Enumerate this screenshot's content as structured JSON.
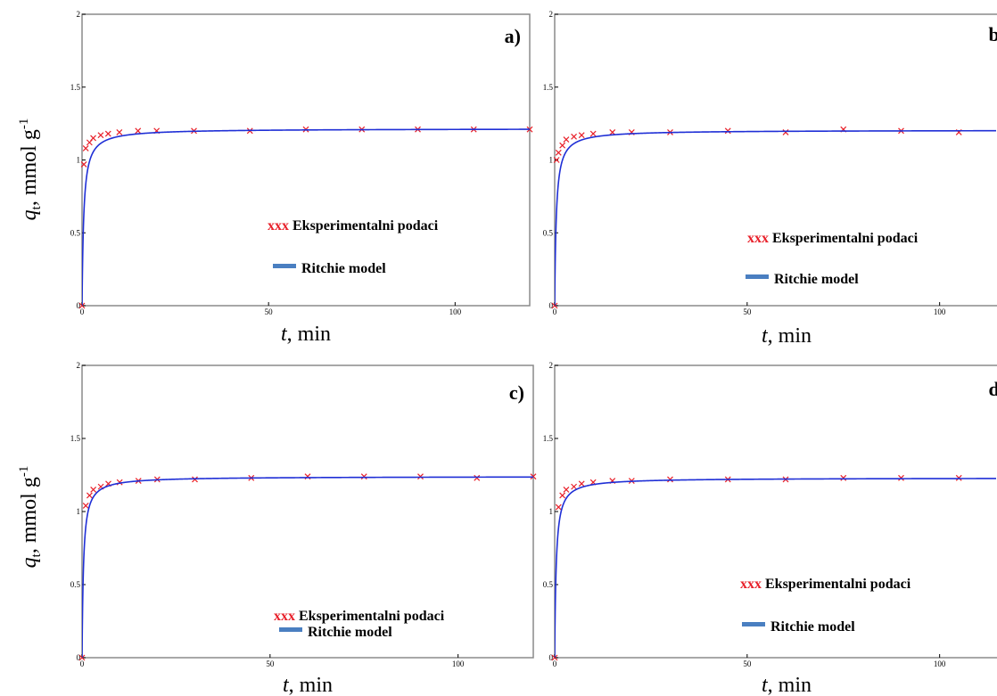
{
  "figure": {
    "ylabel_var": "q",
    "ylabel_sub": "t",
    "ylabel_unit": ", mmol g",
    "ylabel_exp": "-1",
    "xlabel_var": "t",
    "xlabel_unit": ", min"
  },
  "colors": {
    "model": "#1f2fd6",
    "experimental": "#e8202a",
    "legend_model_swatch": "#4a7fc1",
    "legend_marker_text": "#e8202a",
    "frame": "#8a8a8a"
  },
  "chart_data": [
    {
      "id": "a",
      "label": "a)",
      "type": "scatter",
      "xlim": [
        0,
        120
      ],
      "ylim": [
        0,
        2
      ],
      "x_ticks": [
        0,
        50,
        100
      ],
      "y_ticks": [
        0,
        0.5,
        1,
        1.5,
        2
      ],
      "y_tick_labels": [
        "0",
        "0.5",
        "1",
        "1.5",
        "2"
      ],
      "legend": {
        "marker_text": "xxx",
        "experimental": "Eksperimentalni podaci",
        "model": "Ritchie model"
      },
      "series": [
        {
          "name": "Eksperimentalni podaci",
          "kind": "points",
          "x": [
            0,
            0.5,
            1,
            2,
            3,
            5,
            7,
            10,
            15,
            20,
            30,
            45,
            60,
            75,
            90,
            105,
            120
          ],
          "y": [
            0.0,
            0.97,
            1.08,
            1.12,
            1.15,
            1.17,
            1.18,
            1.19,
            1.2,
            1.2,
            1.2,
            1.2,
            1.21,
            1.21,
            1.21,
            1.21,
            1.21
          ]
        },
        {
          "name": "Ritchie model",
          "kind": "line",
          "qe": 1.215,
          "k": 2.2
        }
      ]
    },
    {
      "id": "b",
      "label": "b)",
      "type": "scatter",
      "xlim": [
        0,
        120
      ],
      "ylim": [
        0,
        2
      ],
      "x_ticks": [
        0,
        50,
        100
      ],
      "y_ticks": [
        0,
        0.5,
        1,
        1.5,
        2
      ],
      "y_tick_labels": [
        "0",
        "0.5",
        "1",
        "1.5",
        "2"
      ],
      "legend": {
        "marker_text": "xxx",
        "experimental": "Eksperimentalni podaci",
        "model": "Ritchie model"
      },
      "series": [
        {
          "name": "Eksperimentalni podaci",
          "kind": "points",
          "x": [
            0,
            0.5,
            1,
            2,
            3,
            5,
            7,
            10,
            15,
            20,
            30,
            45,
            60,
            75,
            90,
            105
          ],
          "y": [
            0.0,
            1.0,
            1.05,
            1.1,
            1.14,
            1.16,
            1.17,
            1.18,
            1.19,
            1.19,
            1.19,
            1.2,
            1.19,
            1.21,
            1.2,
            1.19
          ]
        },
        {
          "name": "Ritchie model",
          "kind": "line",
          "qe": 1.205,
          "k": 2.4
        }
      ]
    },
    {
      "id": "c",
      "label": "c)",
      "type": "scatter",
      "xlim": [
        0,
        120
      ],
      "ylim": [
        0,
        2
      ],
      "x_ticks": [
        0,
        50,
        100
      ],
      "y_ticks": [
        0,
        0.5,
        1,
        1.5,
        2
      ],
      "y_tick_labels": [
        "0",
        "0.5",
        "1",
        "1.5",
        "2"
      ],
      "legend": {
        "marker_text": "xxx",
        "experimental": "Eksperimentalni podaci",
        "model": "Ritchie model"
      },
      "series": [
        {
          "name": "Eksperimentalni podaci",
          "kind": "points",
          "x": [
            0,
            1,
            2,
            3,
            5,
            7,
            10,
            15,
            20,
            30,
            45,
            60,
            75,
            90,
            105,
            120
          ],
          "y": [
            0.0,
            1.04,
            1.11,
            1.15,
            1.17,
            1.19,
            1.2,
            1.21,
            1.22,
            1.22,
            1.23,
            1.24,
            1.24,
            1.24,
            1.23,
            1.24
          ]
        },
        {
          "name": "Ritchie model",
          "kind": "line",
          "qe": 1.24,
          "k": 2.6
        }
      ]
    },
    {
      "id": "d",
      "label": "d)",
      "type": "scatter",
      "xlim": [
        0,
        120
      ],
      "ylim": [
        0,
        2
      ],
      "x_ticks": [
        0,
        50,
        100
      ],
      "y_ticks": [
        0,
        0.5,
        1,
        1.5,
        2
      ],
      "y_tick_labels": [
        "0",
        "0.5",
        "1",
        "1.5",
        "2"
      ],
      "legend": {
        "marker_text": "xxx",
        "experimental": "Eksperimentalni podaci",
        "model": "Ritchie model"
      },
      "series": [
        {
          "name": "Eksperimentalni podaci",
          "kind": "points",
          "x": [
            0,
            1,
            2,
            3,
            5,
            7,
            10,
            15,
            20,
            30,
            45,
            60,
            75,
            90,
            105,
            120
          ],
          "y": [
            0.0,
            1.03,
            1.11,
            1.15,
            1.17,
            1.19,
            1.2,
            1.21,
            1.21,
            1.22,
            1.22,
            1.22,
            1.23,
            1.23,
            1.23,
            1.23
          ]
        },
        {
          "name": "Ritchie model",
          "kind": "line",
          "qe": 1.23,
          "k": 2.6
        }
      ]
    }
  ]
}
